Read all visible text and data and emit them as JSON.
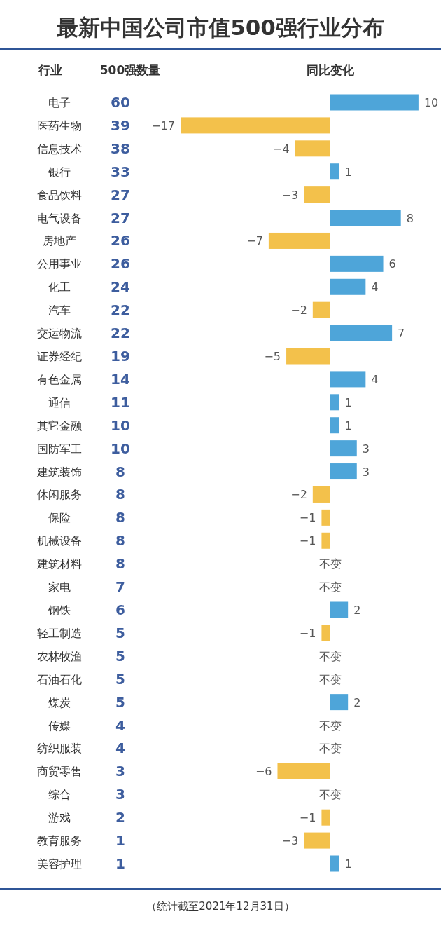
{
  "chart_data": [
    {
      "type": "other",
      "title": "最新中国公司市值500强行业分布",
      "xlabel": "500强数量",
      "color": "#3d5d9e",
      "data_labels": true,
      "values": [
        60,
        39,
        38,
        33,
        27,
        27,
        26,
        26,
        24,
        22,
        22,
        19,
        14,
        11,
        10,
        10,
        8,
        8,
        8,
        8,
        8,
        7,
        6,
        5,
        5,
        5,
        5,
        4,
        4,
        3,
        3,
        2,
        1,
        1
      ]
    },
    {
      "type": "bar",
      "orientation": "horizontal",
      "ylabel": "行业",
      "xlabel": "同比变化",
      "annotations": [
        "（统计截至2021年12月31日）"
      ],
      "categories": [
        "电子",
        "医药生物",
        "信息技术",
        "银行",
        "食品饮料",
        "电气设备",
        "房地产",
        "公用事业",
        "化工",
        "汽车",
        "交运物流",
        "证券经纪",
        "有色金属",
        "通信",
        "其它金融",
        "国防军工",
        "建筑装饰",
        "休闲服务",
        "保险",
        "机械设备",
        "建筑材料",
        "家电",
        "钢铁",
        "轻工制造",
        "农林牧渔",
        "石油石化",
        "煤炭",
        "传媒",
        "纺织服装",
        "商贸零售",
        "综合",
        "游戏",
        "教育服务",
        "美容护理"
      ],
      "values": [
        10,
        -17,
        -4,
        1,
        -3,
        8,
        -7,
        6,
        4,
        -2,
        7,
        -5,
        4,
        1,
        1,
        3,
        3,
        -2,
        -1,
        -1,
        0,
        0,
        2,
        -1,
        0,
        0,
        2,
        0,
        0,
        -6,
        0,
        -1,
        -3,
        1
      ],
      "value_labels": [
        "10",
        "−17",
        "−4",
        "1",
        "−3",
        "8",
        "−7",
        "6",
        "4",
        "−2",
        "7",
        "−5",
        "4",
        "1",
        "1",
        "3",
        "3",
        "−2",
        "−1",
        "−1",
        "不变",
        "不变",
        "2",
        "−1",
        "不变",
        "不变",
        "2",
        "不变",
        "不变",
        "−6",
        "不变",
        "−1",
        "−3",
        "1"
      ],
      "colors": [
        "#4ea5d9",
        "#f3c14b",
        "#f3c14b",
        "#4ea5d9",
        "#f3c14b",
        "#4ea5d9",
        "#f3c14b",
        "#4ea5d9",
        "#4ea5d9",
        "#f3c14b",
        "#4ea5d9",
        "#f3c14b",
        "#4ea5d9",
        "#4ea5d9",
        "#4ea5d9",
        "#4ea5d9",
        "#4ea5d9",
        "#f3c14b",
        "#f3c14b",
        "#f3c14b",
        "#4ea5d9",
        "#4ea5d9",
        "#4ea5d9",
        "#f3c14b",
        "#4ea5d9",
        "#4ea5d9",
        "#4ea5d9",
        "#4ea5d9",
        "#4ea5d9",
        "#f3c14b",
        "#4ea5d9",
        "#f3c14b",
        "#f3c14b",
        "#4ea5d9"
      ]
    }
  ]
}
